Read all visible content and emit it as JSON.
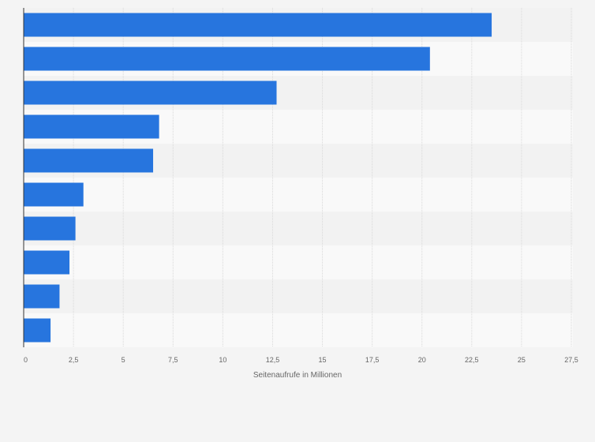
{
  "colors": {
    "background": "#f4f4f4",
    "bar": "#2775de",
    "band_light": "#f9f9f9",
    "band_dark": "#f2f2f2",
    "grid": "#d9d9d9",
    "axis": "#333333",
    "tick_text": "#666666"
  },
  "chart_data": {
    "type": "bar",
    "orientation": "horizontal",
    "title": "",
    "xlabel": "Seitenaufrufe in Millionen",
    "ylabel": "",
    "xlim": [
      0,
      27.5
    ],
    "x_ticks": [
      0,
      2.5,
      5,
      7.5,
      10,
      12.5,
      15,
      17.5,
      20,
      22.5,
      25,
      27.5
    ],
    "x_tick_labels": [
      "0",
      "2,5",
      "5",
      "7,5",
      "10",
      "12,5",
      "15",
      "17,5",
      "20",
      "22,5",
      "25",
      "27,5"
    ],
    "values": [
      23.5,
      20.4,
      12.7,
      6.8,
      6.5,
      3.0,
      2.6,
      2.3,
      1.8,
      1.35
    ],
    "grid": true,
    "legend": false
  }
}
